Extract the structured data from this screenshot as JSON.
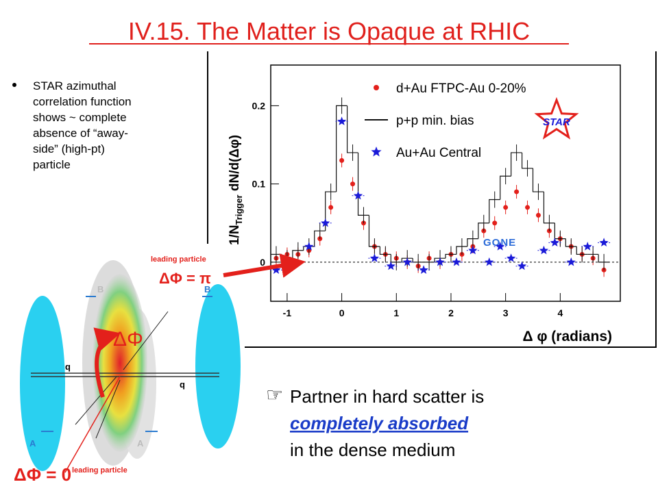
{
  "title": "IV.15. The Matter is Opaque at RHIC",
  "bullet": {
    "lines": [
      "STAR azimuthal",
      "correlation function",
      "shows ~ complete",
      "absence of “away-",
      "side” (high-pt)",
      "particle"
    ]
  },
  "diagram": {
    "leading_top": "leading particle",
    "leading_bottom": "leading particle",
    "dphi_pi": "ΔΦ = π",
    "dphi": "ΔΦ",
    "dphi_zero": "ΔΦ = 0",
    "q_left": "q",
    "q_right": "q",
    "b_left": "B",
    "b_right": "B",
    "a_left": "A",
    "a_right": "A"
  },
  "conclusion": {
    "marker": "☞",
    "line1": "Partner in hard scatter is",
    "emphasis": "completely absorbed",
    "line3": "in the dense medium"
  },
  "chart_data": {
    "type": "scatter",
    "ylabel": {
      "prefix": "1/N",
      "sub": "Trigger",
      "suffix": " dN/d(Δφ)"
    },
    "xlabel": "Δ  φ (radians)",
    "annotation": "GONE",
    "logo": "STAR",
    "xlim": [
      -1.3,
      5.1
    ],
    "ylim": [
      -0.05,
      0.252
    ],
    "xticks": [
      -1,
      0,
      1,
      2,
      3,
      4
    ],
    "yticks": [
      0,
      0.1,
      0.2
    ],
    "series": [
      {
        "name": "d+Au FTPC-Au 0-20%",
        "color": "#e3201b",
        "marker": "circle",
        "x": [
          -1.2,
          -1.0,
          -0.8,
          -0.6,
          -0.4,
          -0.2,
          0.0,
          0.2,
          0.4,
          0.6,
          0.8,
          1.0,
          1.2,
          1.4,
          1.6,
          1.8,
          2.0,
          2.2,
          2.4,
          2.6,
          2.8,
          3.0,
          3.2,
          3.4,
          3.6,
          3.8,
          4.0,
          4.2,
          4.4,
          4.6,
          4.8
        ],
        "values": [
          0.005,
          0.01,
          0.01,
          0.015,
          0.03,
          0.07,
          0.13,
          0.1,
          0.05,
          0.02,
          0.01,
          0.005,
          0.0,
          -0.005,
          0.005,
          0.0,
          0.01,
          0.01,
          0.02,
          0.04,
          0.05,
          0.07,
          0.09,
          0.07,
          0.06,
          0.04,
          0.03,
          0.02,
          0.01,
          0.005,
          -0.01
        ]
      },
      {
        "name": "p+p min. bias",
        "color": "#111111",
        "marker": "step",
        "x": [
          -1.2,
          -1.0,
          -0.8,
          -0.6,
          -0.4,
          -0.2,
          0.0,
          0.2,
          0.4,
          0.6,
          0.8,
          1.0,
          1.2,
          1.4,
          1.6,
          1.8,
          2.0,
          2.2,
          2.4,
          2.6,
          2.8,
          3.0,
          3.2,
          3.4,
          3.6,
          3.8,
          4.0,
          4.2,
          4.4,
          4.6,
          4.8
        ],
        "values": [
          0.01,
          0.005,
          0.015,
          0.02,
          0.04,
          0.09,
          0.2,
          0.14,
          0.06,
          0.02,
          0.01,
          0.0,
          0.005,
          0.0,
          0.0,
          0.005,
          0.01,
          0.02,
          0.03,
          0.05,
          0.08,
          0.11,
          0.14,
          0.12,
          0.09,
          0.05,
          0.03,
          0.02,
          0.01,
          0.01,
          0.0
        ]
      },
      {
        "name": "Au+Au Central",
        "color": "#1a1ad8",
        "marker": "star",
        "x": [
          -1.2,
          -0.6,
          -0.3,
          0.0,
          0.3,
          0.6,
          0.9,
          1.2,
          1.5,
          1.8,
          2.1,
          2.4,
          2.7,
          2.9,
          3.1,
          3.3,
          3.7,
          3.9,
          4.2,
          4.5,
          4.8
        ],
        "values": [
          -0.01,
          0.02,
          0.05,
          0.18,
          0.085,
          0.005,
          -0.005,
          0.0,
          -0.01,
          0.0,
          0.0,
          0.015,
          0.0,
          0.02,
          0.005,
          -0.005,
          0.015,
          0.025,
          0.0,
          0.02,
          0.025
        ]
      }
    ]
  }
}
